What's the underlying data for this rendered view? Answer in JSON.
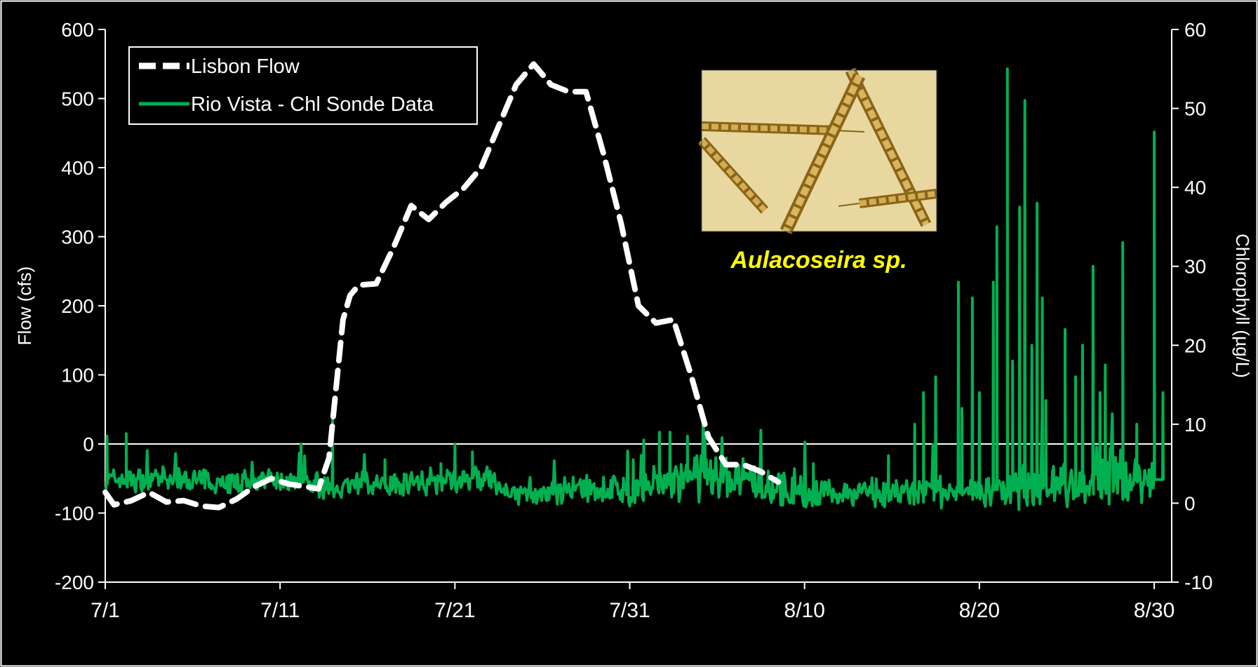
{
  "chart_data": {
    "type": "line",
    "xlabel": "",
    "ylabel": "Flow (cfs)",
    "y2label": "Chlorophyll (µg/L)",
    "x_range": [
      "7/1",
      "8/31"
    ],
    "x_ticks": [
      "7/1",
      "7/11",
      "7/21",
      "7/31",
      "8/10",
      "8/20",
      "8/30"
    ],
    "ylim": [
      -200,
      600
    ],
    "y_ticks": [
      600,
      500,
      400,
      300,
      200,
      100,
      0,
      -100,
      -200
    ],
    "y2lim": [
      -10,
      60
    ],
    "y2_ticks": [
      60,
      50,
      40,
      30,
      20,
      10,
      0,
      -10
    ],
    "grid": false,
    "zero_line": true,
    "legend_position": "top-left",
    "colors": {
      "flow": "#ffffff",
      "chl": "#00b050",
      "annotation": "#ffff00",
      "background": "#000000"
    },
    "inset": {
      "icon": "aulacoseira-micrograph-icon",
      "caption": "Aulacoseira sp."
    },
    "series": [
      {
        "name": "Lisbon Flow",
        "axis": "left",
        "style": "dashed",
        "points": [
          [
            0,
            -70
          ],
          [
            0.5,
            -88
          ],
          [
            1.5,
            -82
          ],
          [
            2.5,
            -70
          ],
          [
            3.5,
            -84
          ],
          [
            4.5,
            -82
          ],
          [
            5.5,
            -90
          ],
          [
            6.5,
            -92
          ],
          [
            7.5,
            -80
          ],
          [
            8.5,
            -62
          ],
          [
            9.5,
            -50
          ],
          [
            10.5,
            -58
          ],
          [
            11.5,
            -62
          ],
          [
            12.2,
            -65
          ],
          [
            12.8,
            -20
          ],
          [
            13.2,
            80
          ],
          [
            13.6,
            180
          ],
          [
            14.0,
            215
          ],
          [
            14.5,
            230
          ],
          [
            15.5,
            232
          ],
          [
            16.5,
            285
          ],
          [
            17.5,
            345
          ],
          [
            18.5,
            325
          ],
          [
            19.5,
            350
          ],
          [
            20.5,
            370
          ],
          [
            21.5,
            400
          ],
          [
            22.5,
            460
          ],
          [
            23.5,
            520
          ],
          [
            24.5,
            550
          ],
          [
            25.5,
            520
          ],
          [
            26.5,
            510
          ],
          [
            27.5,
            510
          ],
          [
            28.5,
            420
          ],
          [
            29.5,
            320
          ],
          [
            30.5,
            200
          ],
          [
            31.5,
            175
          ],
          [
            32.5,
            180
          ],
          [
            33.5,
            100
          ],
          [
            34.5,
            10
          ],
          [
            35.5,
            -30
          ],
          [
            36.5,
            -30
          ],
          [
            37.5,
            -40
          ],
          [
            38.5,
            -55
          ]
        ]
      },
      {
        "name": "Rio Vista - Chl Sonde Data",
        "axis": "right",
        "style": "solid",
        "generated": {
          "samples": 1000,
          "x_start": 0,
          "x_end": 60,
          "seed": 7,
          "baseline": [
            [
              0,
              3.0
            ],
            [
              12,
              2.5
            ],
            [
              13,
              2.0
            ],
            [
              21,
              3.2
            ],
            [
              22,
              3.0
            ],
            [
              23,
              1.0
            ],
            [
              30,
              1.8
            ],
            [
              35,
              3.5
            ],
            [
              40,
              1.2
            ],
            [
              50,
              1.5
            ],
            [
              55,
              2.5
            ],
            [
              60,
              3.0
            ]
          ],
          "noise_amp": [
            [
              0,
              1.8
            ],
            [
              21,
              2.0
            ],
            [
              23,
              1.5
            ],
            [
              30,
              2.5
            ],
            [
              35,
              3.5
            ],
            [
              42,
              2.0
            ],
            [
              50,
              2.5
            ],
            [
              54,
              3.5
            ],
            [
              57,
              5.0
            ],
            [
              62,
              3.0
            ],
            [
              70,
              2.0
            ]
          ],
          "spikes": [
            [
              0.1,
              8.5
            ],
            [
              1.2,
              8.8
            ],
            [
              11.2,
              7.5
            ],
            [
              13.0,
              11.0
            ],
            [
              16.0,
              5.5
            ],
            [
              19.2,
              5.0
            ],
            [
              20.0,
              7.5
            ],
            [
              21.0,
              6.5
            ],
            [
              30.2,
              5.5
            ],
            [
              30.8,
              8.0
            ],
            [
              31.7,
              9.0
            ],
            [
              32.3,
              9.0
            ],
            [
              33.3,
              8.5
            ],
            [
              34.3,
              9.0
            ],
            [
              40.5,
              5.0
            ],
            [
              44.8,
              6.0
            ],
            [
              46.3,
              10.0
            ],
            [
              46.8,
              14.0
            ],
            [
              47.5,
              16.0
            ],
            [
              48.8,
              28.0
            ],
            [
              49.0,
              12.0
            ],
            [
              49.6,
              26.0
            ],
            [
              50.0,
              14.0
            ],
            [
              50.8,
              28.0
            ],
            [
              51.0,
              35.0
            ],
            [
              51.6,
              55.0
            ],
            [
              51.9,
              18.0
            ],
            [
              52.3,
              37.5
            ],
            [
              52.6,
              51.0
            ],
            [
              53.0,
              20.0
            ],
            [
              53.3,
              38.0
            ],
            [
              53.6,
              26.0
            ],
            [
              53.8,
              13.0
            ],
            [
              54.9,
              22.0
            ],
            [
              55.5,
              16.0
            ],
            [
              55.9,
              20.0
            ],
            [
              56.5,
              30.0
            ],
            [
              56.9,
              14.0
            ],
            [
              57.2,
              17.5
            ],
            [
              58.2,
              33.0
            ],
            [
              59.0,
              10.0
            ],
            [
              60.0,
              47.0
            ],
            [
              60.5,
              14.0
            ]
          ]
        }
      }
    ]
  }
}
